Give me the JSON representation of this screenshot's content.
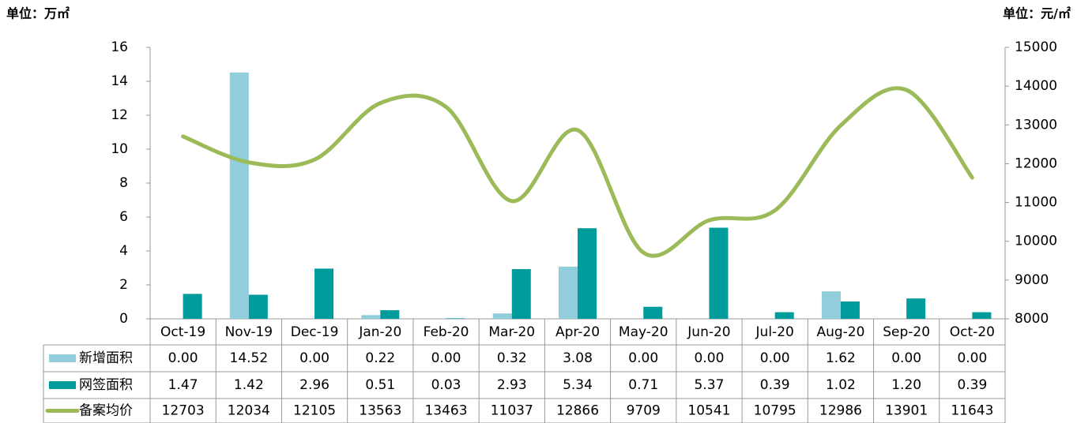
{
  "chart_data": {
    "type": "bar",
    "unit_left": "单位：万㎡",
    "unit_right": "单位：元/㎡",
    "categories": [
      "Oct-19",
      "Nov-19",
      "Dec-19",
      "Jan-20",
      "Feb-20",
      "Mar-20",
      "Apr-20",
      "May-20",
      "Jun-20",
      "Jul-20",
      "Aug-20",
      "Sep-20",
      "Oct-20"
    ],
    "series": [
      {
        "name": "新增面积",
        "color": "#92cddc",
        "type": "bar",
        "values": [
          0,
          14.52,
          0,
          0.22,
          0,
          0.32,
          3.08,
          0,
          0,
          0,
          1.62,
          0,
          0
        ],
        "value_labels": [
          "0.00",
          "14.52",
          "0.00",
          "0.22",
          "0.00",
          "0.32",
          "3.08",
          "0.00",
          "0.00",
          "0.00",
          "1.62",
          "0.00",
          "0.00"
        ]
      },
      {
        "name": "网签面积",
        "color": "#009b9b",
        "type": "bar",
        "values": [
          1.47,
          1.42,
          2.96,
          0.51,
          0.03,
          2.93,
          5.34,
          0.71,
          5.37,
          0.39,
          1.02,
          1.2,
          0.39
        ],
        "value_labels": [
          "1.47",
          "1.42",
          "2.96",
          "0.51",
          "0.03",
          "2.93",
          "5.34",
          "0.71",
          "5.37",
          "0.39",
          "1.02",
          "1.20",
          "0.39"
        ]
      },
      {
        "name": "备案均价",
        "color": "#9bbb59",
        "type": "line",
        "axis": "y2",
        "values": [
          12703,
          12034,
          12105,
          13563,
          13463,
          11037,
          12866,
          9709,
          10541,
          10795,
          12986,
          13901,
          11643
        ]
      }
    ],
    "ylim": [
      0,
      16
    ],
    "yticks": [
      0,
      2,
      4,
      6,
      8,
      10,
      12,
      14,
      16
    ],
    "y2lim": [
      8000,
      15000
    ],
    "y2ticks": [
      8000,
      9000,
      10000,
      11000,
      12000,
      13000,
      14000,
      15000
    ]
  }
}
